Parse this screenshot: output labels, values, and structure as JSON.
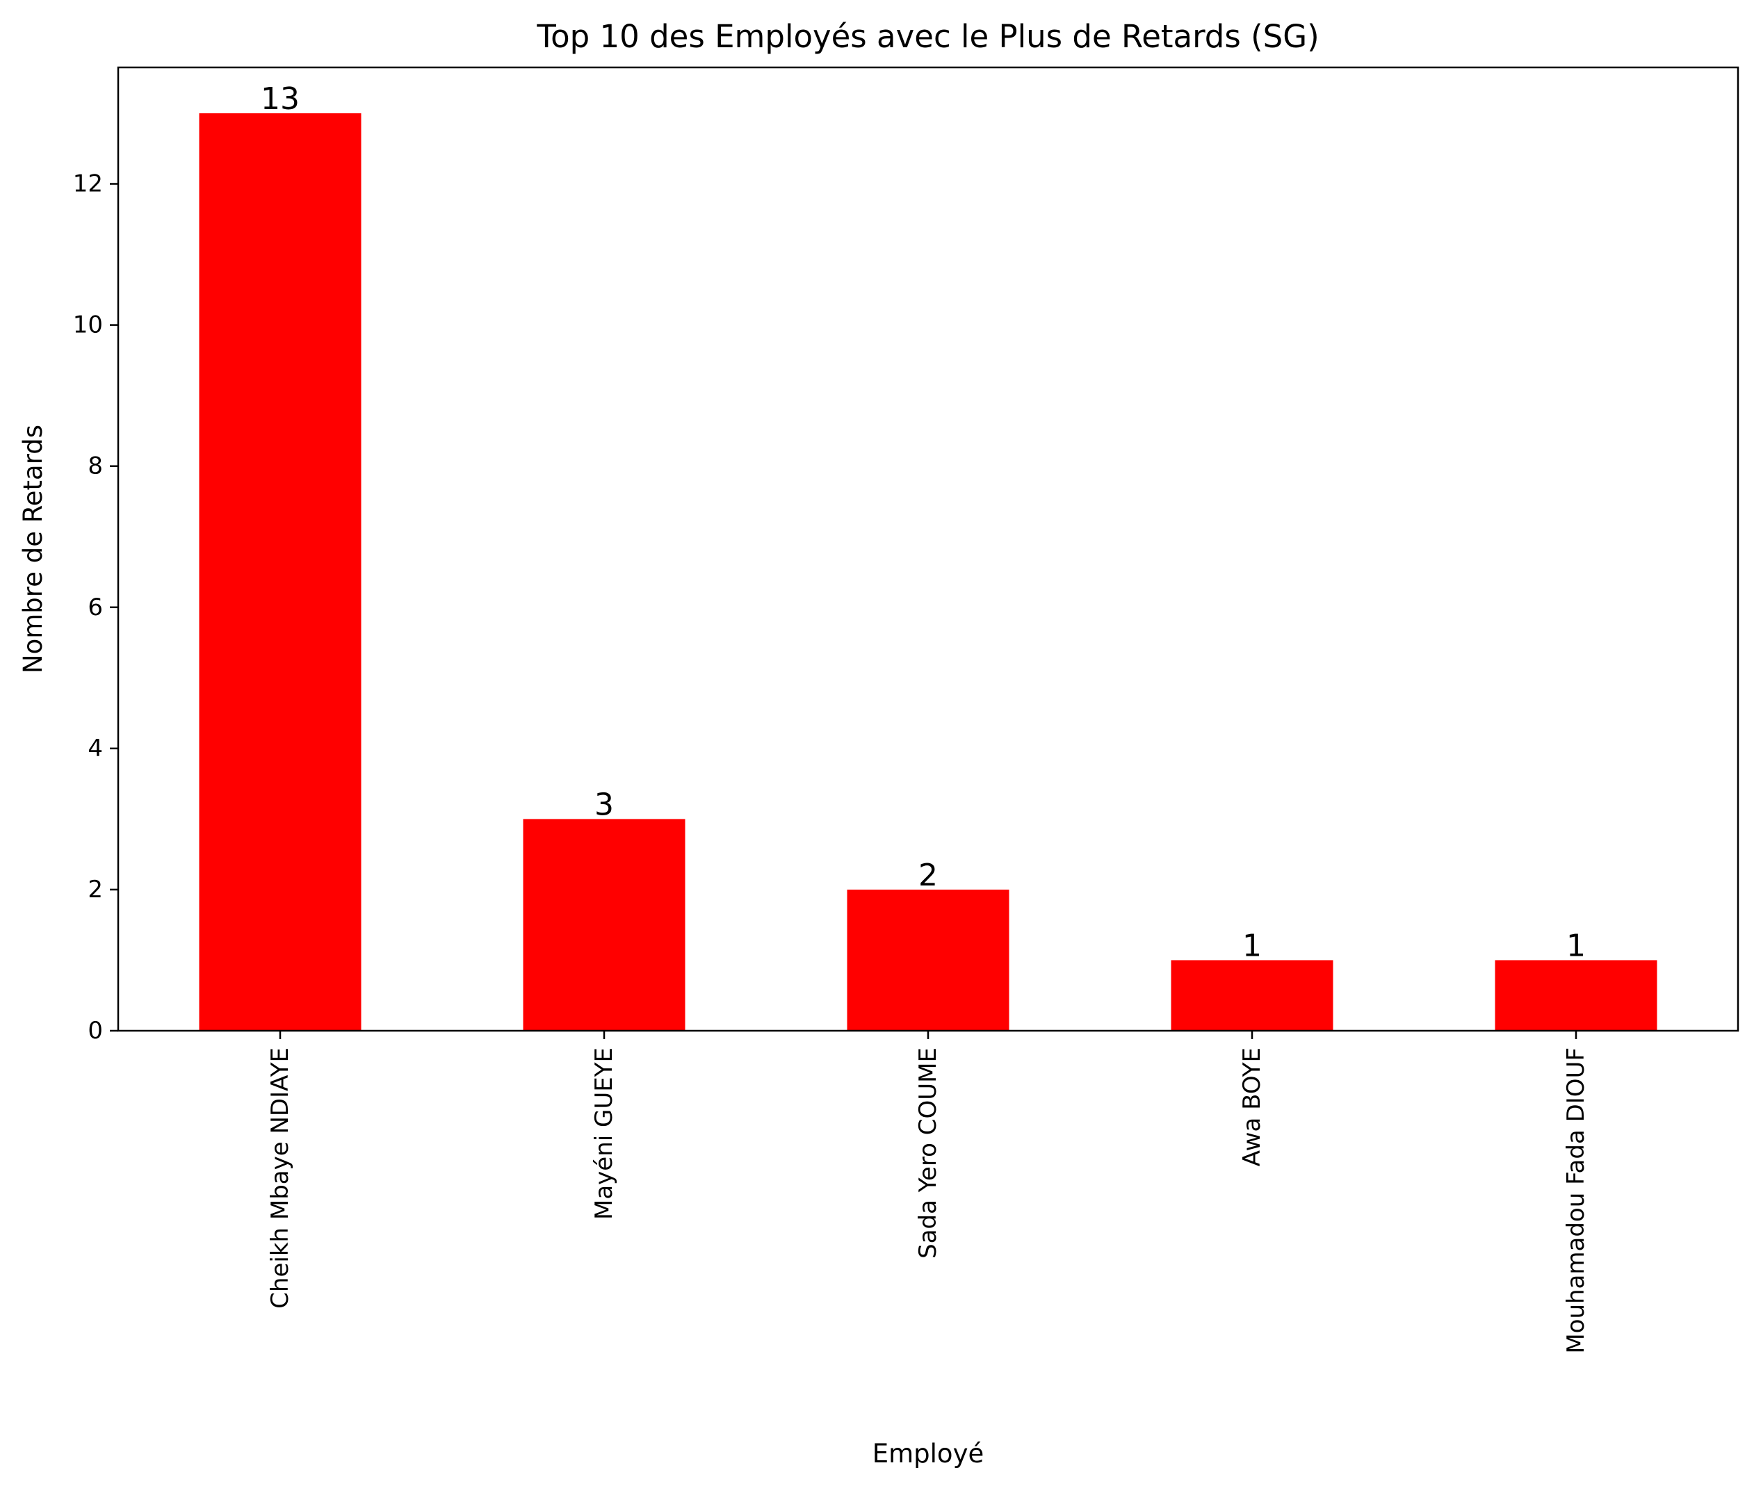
{
  "chart_data": {
    "type": "bar",
    "title": "Top 10 des Employés avec le Plus de Retards (SG)",
    "xlabel": "Employé",
    "ylabel": "Nombre de Retards",
    "categories": [
      "Cheikh Mbaye NDIAYE",
      "Mayéni GUEYE",
      "Sada Yero COUME",
      "Awa BOYE",
      "Mouhamadou Fada DIOUF"
    ],
    "values": [
      13,
      3,
      2,
      1,
      1
    ],
    "data_labels": [
      "13",
      "3",
      "2",
      "1",
      "1"
    ],
    "ylim": [
      0,
      13.65
    ],
    "yticks": [
      0,
      2,
      4,
      6,
      8,
      10,
      12
    ],
    "ytick_labels": [
      "0",
      "2",
      "4",
      "6",
      "8",
      "10",
      "12"
    ],
    "bar_color": "#ff0000",
    "grid": false,
    "legend": "none"
  }
}
